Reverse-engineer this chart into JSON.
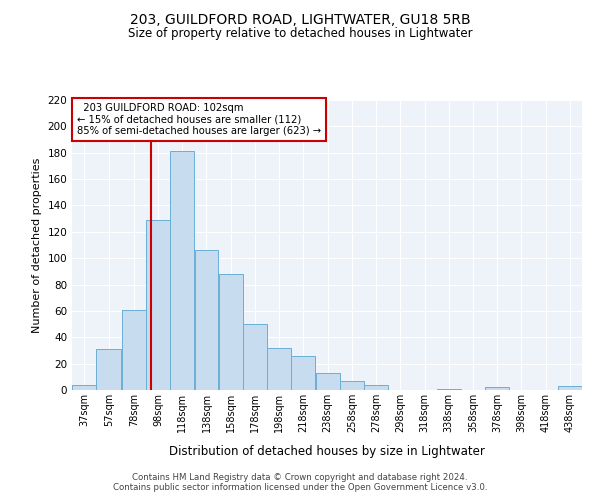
{
  "title1": "203, GUILDFORD ROAD, LIGHTWATER, GU18 5RB",
  "title2": "Size of property relative to detached houses in Lightwater",
  "xlabel": "Distribution of detached houses by size in Lightwater",
  "ylabel": "Number of detached properties",
  "annotation_line1": "  203 GUILDFORD ROAD: 102sqm  ",
  "annotation_line2": "← 15% of detached houses are smaller (112)",
  "annotation_line3": "85% of semi-detached houses are larger (623) →",
  "vline_x": 102,
  "bar_edges": [
    37,
    57,
    78,
    98,
    118,
    138,
    158,
    178,
    198,
    218,
    238,
    258,
    278,
    298,
    318,
    338,
    358,
    378,
    398,
    418,
    438
  ],
  "bar_widths": [
    20,
    21,
    20,
    20,
    20,
    20,
    20,
    20,
    20,
    20,
    20,
    20,
    20,
    20,
    20,
    20,
    20,
    20,
    20,
    20,
    20
  ],
  "bar_heights": [
    4,
    31,
    61,
    129,
    181,
    106,
    88,
    50,
    32,
    26,
    13,
    7,
    4,
    0,
    0,
    1,
    0,
    2,
    0,
    0,
    3
  ],
  "bar_color": "#c8dcf0",
  "bar_edgecolor": "#6aaed6",
  "vline_color": "#cc0000",
  "annotation_box_edgecolor": "#cc0000",
  "background_color": "#eef2f9",
  "grid_color": "#ffffff",
  "ylim": [
    0,
    220
  ],
  "yticks": [
    0,
    20,
    40,
    60,
    80,
    100,
    120,
    140,
    160,
    180,
    200,
    220
  ],
  "footer1": "Contains HM Land Registry data © Crown copyright and database right 2024.",
  "footer2": "Contains public sector information licensed under the Open Government Licence v3.0."
}
